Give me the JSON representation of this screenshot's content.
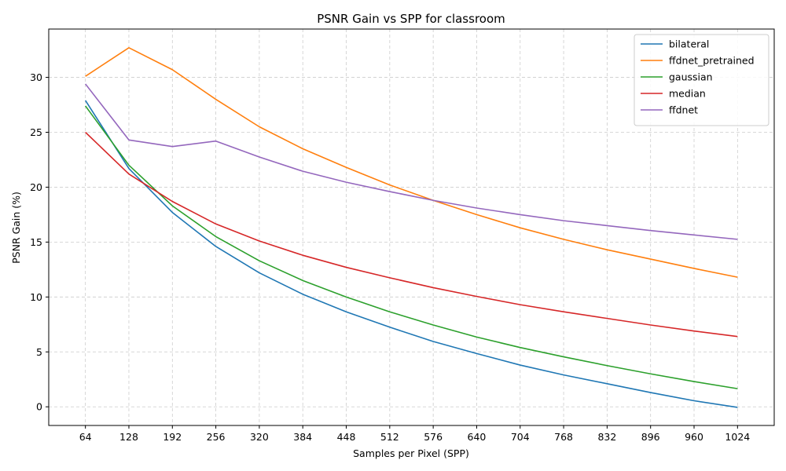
{
  "chart_data": {
    "type": "line",
    "title": "PSNR Gain vs SPP for classroom",
    "xlabel": "Samples per Pixel (SPP)",
    "ylabel": "PSNR Gain (%)",
    "x": [
      64,
      128,
      192,
      256,
      320,
      384,
      448,
      512,
      576,
      640,
      704,
      768,
      832,
      896,
      960,
      1024
    ],
    "xlim": [
      10,
      1078
    ],
    "ylim": [
      -1.7,
      34.4
    ],
    "yticks": [
      0,
      5,
      10,
      15,
      20,
      25,
      30
    ],
    "grid": true,
    "legend_position": "top-right",
    "series": [
      {
        "name": "bilateral",
        "color": "#1f77b4",
        "values": [
          27.9,
          21.7,
          17.7,
          14.6,
          12.2,
          10.25,
          8.65,
          7.25,
          5.95,
          4.85,
          3.8,
          2.9,
          2.1,
          1.3,
          0.55,
          -0.05
        ]
      },
      {
        "name": "ffdnet_pretrained",
        "color": "#ff7f0e",
        "values": [
          30.1,
          32.7,
          30.7,
          28.0,
          25.5,
          23.5,
          21.8,
          20.2,
          18.8,
          17.5,
          16.3,
          15.25,
          14.3,
          13.45,
          12.6,
          11.8
        ]
      },
      {
        "name": "gaussian",
        "color": "#2ca02c",
        "values": [
          27.4,
          22.0,
          18.3,
          15.5,
          13.3,
          11.5,
          10.0,
          8.65,
          7.45,
          6.35,
          5.4,
          4.55,
          3.75,
          3.0,
          2.3,
          1.65
        ]
      },
      {
        "name": "median",
        "color": "#d62728",
        "values": [
          25.0,
          21.2,
          18.7,
          16.65,
          15.1,
          13.8,
          12.7,
          11.75,
          10.85,
          10.05,
          9.3,
          8.65,
          8.05,
          7.45,
          6.9,
          6.4
        ]
      },
      {
        "name": "ffdnet",
        "color": "#9467bd",
        "values": [
          29.4,
          24.3,
          23.7,
          24.2,
          22.75,
          21.45,
          20.45,
          19.6,
          18.8,
          18.1,
          17.5,
          16.95,
          16.5,
          16.05,
          15.65,
          15.25
        ]
      }
    ]
  }
}
